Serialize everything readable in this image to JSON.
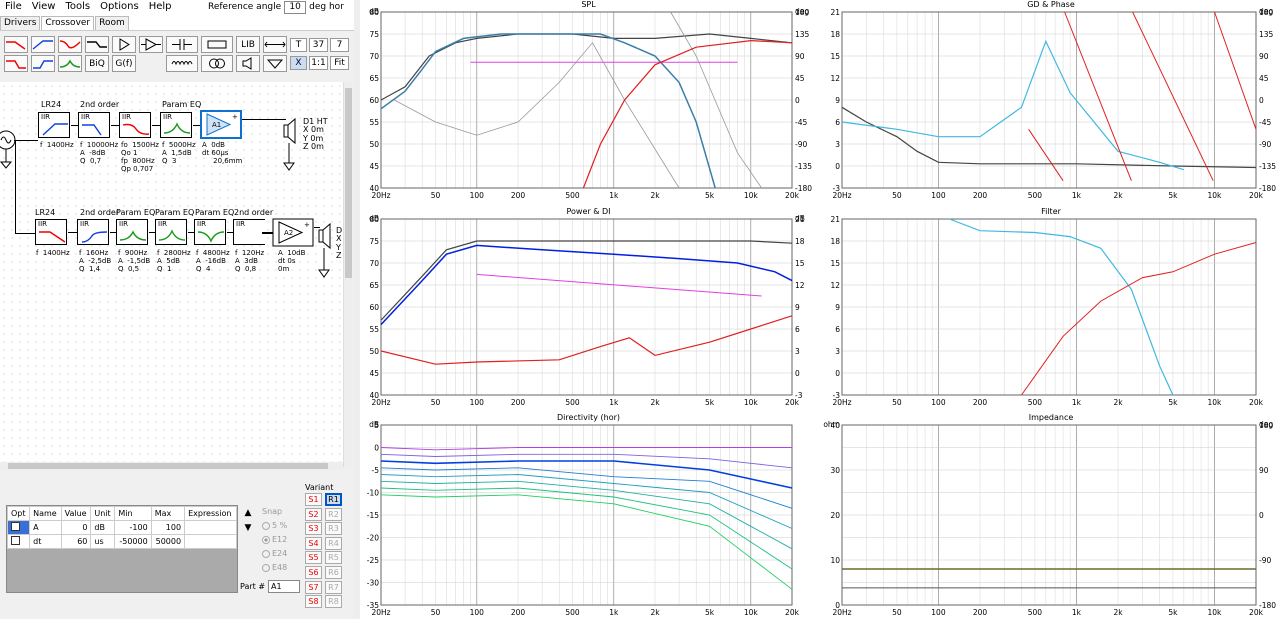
{
  "menu": {
    "items": [
      "File",
      "View",
      "Tools",
      "Options",
      "Help"
    ]
  },
  "reference": {
    "label": "Reference angle",
    "value": "10",
    "unit": "deg hor"
  },
  "tabs": [
    "Drivers",
    "Crossover",
    "Room"
  ],
  "toolbar": {
    "biq": "BiQ",
    "gf": "G(f)",
    "lib": "LIB",
    "t": "T",
    "n37": "37",
    "n7": "7",
    "x": "X",
    "r11": "1:1",
    "fit": "Fit"
  },
  "circuit": {
    "top": {
      "blocks": [
        {
          "title": "LR24",
          "type": "IIR",
          "params": "f  1400Hz"
        },
        {
          "title": "2nd order",
          "type": "IIR",
          "params": "f  10000Hz\nA  -8dB\nQ  0,7"
        },
        {
          "title": "",
          "type": "IIR",
          "params": "fo  1500Hz\nQo 1\nfp  800Hz\nQp 0,707"
        },
        {
          "title": "Param EQ",
          "type": "IIR",
          "params": "f  5000Hz\nA  1,5dB\nQ  3"
        }
      ],
      "amp": {
        "name": "A1",
        "params": "A  0dB\ndt 60µs\n     20,6mm"
      },
      "driver": {
        "label": "D1 HT",
        "params": "X 0m\nY 0m\nZ 0m"
      }
    },
    "bottom": {
      "blocks": [
        {
          "title": "LR24",
          "type": "IIR",
          "params": "f  1400Hz"
        },
        {
          "title": "2nd order",
          "type": "IIR",
          "params": "f  160Hz\nA  -2,5dB\nQ  1,4"
        },
        {
          "title": "Param EQ",
          "type": "IIR",
          "params": "f  900Hz\nA  -1,5dB\nQ  0,5"
        },
        {
          "title": "Param EQ",
          "type": "IIR",
          "params": "f  2800Hz\nA  5dB\nQ  1"
        },
        {
          "title": "Param EQ",
          "type": "IIR",
          "params": "f  4800Hz\nA  -16dB\nQ  4"
        },
        {
          "title": "2nd order",
          "type": "IIR",
          "params": "f  120Hz\nA  3dB\nQ  0,8"
        }
      ],
      "amp": {
        "name": "A2",
        "params": "A  10dB\ndt 0s\n0m"
      },
      "driver": {
        "label": "D",
        "params": "X\nY\nZ"
      }
    }
  },
  "params_table": {
    "headers": [
      "Opt",
      "Name",
      "Value",
      "Unit",
      "Min",
      "Max",
      "Expression"
    ],
    "rows": [
      {
        "name": "A",
        "value": "0",
        "unit": "dB",
        "min": "-100",
        "max": "100",
        "expr": ""
      },
      {
        "name": "dt",
        "value": "60",
        "unit": "us",
        "min": "-50000",
        "max": "50000",
        "expr": ""
      }
    ]
  },
  "snap": {
    "label": "Snap",
    "options": [
      "5 %",
      "E12",
      "E24",
      "E48"
    ],
    "selected": "E12"
  },
  "variant": {
    "label": "Variant",
    "s": [
      "S1",
      "S2",
      "S3",
      "S4",
      "S5",
      "S6",
      "S7",
      "S8"
    ],
    "r": [
      "R1",
      "R2",
      "R3",
      "R4",
      "R5",
      "R6",
      "R7",
      "R8"
    ],
    "active": "R1"
  },
  "part": {
    "label": "Part #",
    "value": "A1"
  },
  "graphs": {
    "spl": {
      "title": "SPL",
      "left_unit": "dB",
      "right_unit": "deg",
      "left_ticks": [
        "80",
        "75",
        "70",
        "65",
        "60",
        "55",
        "50",
        "45",
        "40"
      ],
      "right_ticks": [
        "180",
        "135",
        "90",
        "45",
        "0",
        "-45",
        "-90",
        "-135",
        "-180"
      ]
    },
    "gd": {
      "title": "GD & Phase",
      "left_unit": "",
      "right_unit": "deg",
      "left_ticks": [
        "21",
        "18",
        "15",
        "12",
        "9",
        "6",
        "3",
        "0",
        "-3"
      ],
      "right_ticks": [
        "180",
        "135",
        "90",
        "45",
        "0",
        "-45",
        "-90",
        "-135",
        "-180"
      ]
    },
    "pdi": {
      "title": "Power & DI",
      "left_unit": "dB",
      "right_unit": "dB",
      "left_ticks": [
        "80",
        "75",
        "70",
        "65",
        "60",
        "55",
        "50",
        "45",
        "40"
      ],
      "right_ticks": [
        "21",
        "18",
        "15",
        "12",
        "9",
        "6",
        "3",
        "0",
        "-3"
      ]
    },
    "filter": {
      "title": "Filter",
      "left_unit": "",
      "right_unit": "",
      "left_ticks": [
        "21",
        "18",
        "15",
        "12",
        "9",
        "6",
        "3",
        "0",
        "-3"
      ],
      "right_ticks": []
    },
    "dir": {
      "title": "Directivity (hor)",
      "left_unit": "dB",
      "right_unit": "",
      "left_ticks": [
        "5",
        "0",
        "-5",
        "-10",
        "-15",
        "-20",
        "-25",
        "-30",
        "-35"
      ],
      "right_ticks": []
    },
    "imp": {
      "title": "Impedance",
      "left_unit": "ohm",
      "right_unit": "deg",
      "left_ticks": [
        "40",
        "",
        "30",
        "",
        "20",
        "",
        "10",
        "",
        "0"
      ],
      "right_ticks": [
        "180",
        "",
        "90",
        "",
        "0",
        "",
        "-90",
        "",
        "-180"
      ]
    }
  },
  "x_ticks": [
    "20Hz",
    "50",
    "100",
    "200",
    "500",
    "1k",
    "2k",
    "5k",
    "10k",
    "20k"
  ],
  "colors": {
    "spl": "#3a7fa8",
    "phase": "#444",
    "off": "#999",
    "red": "#e02020",
    "magenta": "#e040e0",
    "cyan": "#40b8e0",
    "blue": "#0020e0",
    "olive": "#6b6b2a"
  }
}
